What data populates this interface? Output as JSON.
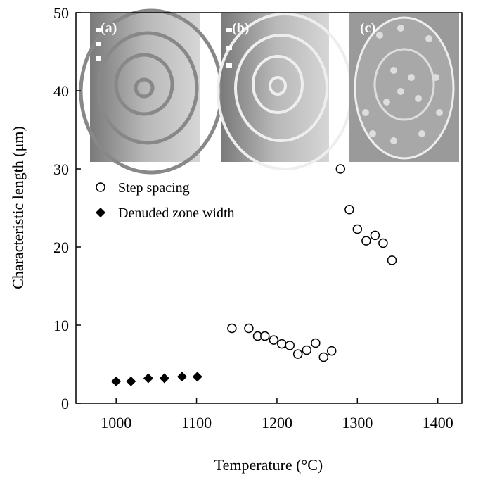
{
  "chart_data": {
    "type": "scatter",
    "x_label": "Temperature (°C)",
    "y_label": "Characteristic length (μm)",
    "xlim": [
      950,
      1430
    ],
    "xticks": [
      1000,
      1100,
      1200,
      1300,
      1400
    ],
    "ylim": [
      0,
      50
    ],
    "yticks": [
      0,
      10,
      20,
      30,
      40,
      50
    ],
    "legend": "center-left",
    "panel_labels": [
      "(a)",
      "(b)",
      "(c)"
    ],
    "series": [
      {
        "name": "Step spacing",
        "marker": "circle",
        "color": "#000000",
        "x": [
          1144,
          1165,
          1176,
          1185,
          1196,
          1206,
          1216,
          1226,
          1237,
          1248,
          1258,
          1268,
          1279,
          1290,
          1300,
          1311,
          1322,
          1332,
          1343
        ],
        "values": [
          9.6,
          9.6,
          8.6,
          8.6,
          8.1,
          7.6,
          7.4,
          6.3,
          6.8,
          7.7,
          5.9,
          6.7,
          30.0,
          24.8,
          22.3,
          20.8,
          21.5,
          20.5,
          18.3
        ]
      },
      {
        "name": "Denuded zone width",
        "marker": "diamond",
        "color": "#000000",
        "x": [
          1000,
          1018.5,
          1040,
          1060,
          1082,
          1101
        ],
        "values": [
          2.8,
          2.8,
          3.2,
          3.2,
          3.4,
          3.4
        ]
      }
    ]
  }
}
